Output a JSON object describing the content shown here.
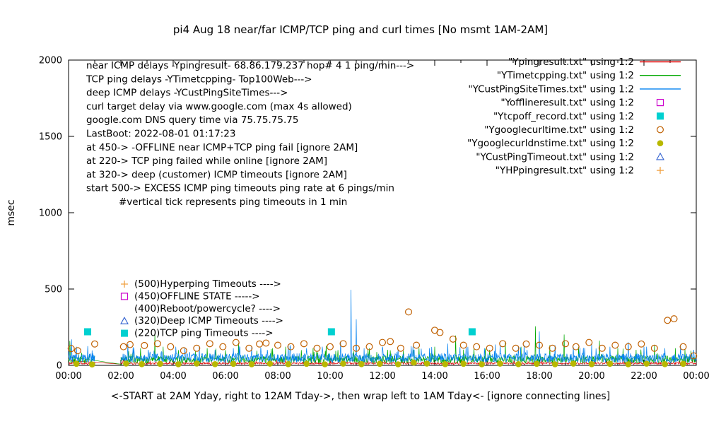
{
  "chart_data": {
    "type": "line",
    "title": "pi4 Aug 18  near/far ICMP/TCP ping and curl times [No msmt 1AM-2AM]",
    "ylabel": "msec",
    "footer_note": "<-START at 2AM Yday, right to 12AM Tday->, then wrap left to 1AM Tday<- [ignore connecting lines]",
    "xlim_hours": [
      0,
      24
    ],
    "ylim": [
      0,
      2000
    ],
    "y_ticks": [
      0,
      500,
      1000,
      1500,
      2000
    ],
    "x_tick_labels": [
      "00:00",
      "02:00",
      "04:00",
      "06:00",
      "08:00",
      "10:00",
      "12:00",
      "14:00",
      "16:00",
      "18:00",
      "20:00",
      "22:00",
      "00:00"
    ],
    "gap_hours": [
      1,
      2
    ],
    "grid": false,
    "legend_position": "top-right",
    "info_lines": [
      "near ICMP delays -Ypingresult- 68.86.179.237 hop# 4 1 ping/min--->",
      "TCP ping delays -YTimetcpping- Top100Web--->",
      "deep ICMP delays -YCustPingSiteTimes--->",
      "curl target delay via www.google.com (max 4s allowed)",
      "google.com DNS query time via 75.75.75.75",
      "LastBoot: 2022-08-01 01:17:23",
      "at 450-> -OFFLINE near ICMP+TCP ping fail [ignore 2AM]",
      "at 220-> TCP ping failed while online [ignore 2AM]",
      "at 320-> deep (customer) ICMP timeouts [ignore 2AM]",
      "start 500-> EXCESS ICMP ping timeouts ping rate at 6 pings/min",
      "#vertical tick represents ping timeouts in 1 min"
    ],
    "level_labels": [
      {
        "value": 500,
        "marker": "plus",
        "marker_color": "#f0a040",
        "label": "(500)Hyperping Timeouts ---->"
      },
      {
        "value": 450,
        "marker": "open-square",
        "marker_color": "#cc00cc",
        "label": "(450)OFFLINE STATE ----->"
      },
      {
        "value": 400,
        "marker": "none",
        "marker_color": "",
        "label": "(400)Reboot/powercycle? ---->"
      },
      {
        "value": 320,
        "marker": "open-triangle",
        "marker_color": "#3060d0",
        "label": "(320)Deep ICMP Timeouts ---->"
      },
      {
        "value": 220,
        "marker": "filled-square",
        "marker_color": "#00d0d0",
        "label": "(220)TCP ping Timeouts ---->"
      }
    ],
    "series": [
      {
        "legend": "\"Ypingresult.txt\" using 1:2",
        "style": "line",
        "color": "#dd0000",
        "baseline": [
          6,
          20
        ],
        "seed": 11,
        "spikes": [
          [
            0.15,
            58
          ],
          [
            2.1,
            42
          ],
          [
            4.5,
            36
          ],
          [
            6.9,
            32
          ],
          [
            9.0,
            34
          ],
          [
            12.1,
            36
          ],
          [
            15.0,
            32
          ],
          [
            18.1,
            40
          ],
          [
            21.5,
            34
          ],
          [
            23.5,
            30
          ]
        ],
        "connectors": [
          [
            0.1,
            30,
            2.0,
            8
          ]
        ]
      },
      {
        "legend": "\"YTimetcpping.txt\" using 1:2",
        "style": "line",
        "color": "#00a800",
        "baseline": [
          14,
          62
        ],
        "seed": 22,
        "spikes": [
          [
            0.05,
            160
          ],
          [
            0.5,
            82
          ],
          [
            2.3,
            92
          ],
          [
            2.75,
            112
          ],
          [
            3.3,
            205
          ],
          [
            3.62,
            122
          ],
          [
            4.2,
            100
          ],
          [
            4.85,
            92
          ],
          [
            5.3,
            112
          ],
          [
            6.0,
            100
          ],
          [
            6.5,
            148
          ],
          [
            7.2,
            96
          ],
          [
            7.8,
            112
          ],
          [
            8.3,
            122
          ],
          [
            8.9,
            100
          ],
          [
            9.35,
            112
          ],
          [
            9.85,
            128
          ],
          [
            10.3,
            100
          ],
          [
            10.9,
            92
          ],
          [
            11.5,
            112
          ],
          [
            12.2,
            102
          ],
          [
            12.8,
            96
          ],
          [
            13.4,
            112
          ],
          [
            14.0,
            122
          ],
          [
            14.8,
            196
          ],
          [
            15.5,
            112
          ],
          [
            16.1,
            102
          ],
          [
            16.7,
            156
          ],
          [
            17.3,
            122
          ],
          [
            17.85,
            256
          ],
          [
            18.4,
            132
          ],
          [
            18.95,
            202
          ],
          [
            19.5,
            122
          ],
          [
            20.3,
            162
          ],
          [
            21.0,
            112
          ],
          [
            21.7,
            102
          ],
          [
            22.4,
            132
          ],
          [
            23.2,
            112
          ],
          [
            23.8,
            96
          ]
        ],
        "connectors": [
          [
            0.08,
            55,
            2.05,
            6
          ]
        ]
      },
      {
        "legend": "\"YCustPingSiteTimes.txt\" using 1:2",
        "style": "line",
        "color": "#0080f0",
        "baseline": [
          18,
          78
        ],
        "seed": 33,
        "spikes": [
          [
            0.12,
            170
          ],
          [
            0.3,
            122
          ],
          [
            2.5,
            112
          ],
          [
            3.05,
            102
          ],
          [
            4.1,
            122
          ],
          [
            5.0,
            126
          ],
          [
            5.6,
            102
          ],
          [
            6.3,
            112
          ],
          [
            7.0,
            122
          ],
          [
            7.6,
            102
          ],
          [
            8.4,
            132
          ],
          [
            9.1,
            112
          ],
          [
            9.7,
            122
          ],
          [
            10.4,
            152
          ],
          [
            10.8,
            495
          ],
          [
            11.0,
            302
          ],
          [
            11.3,
            112
          ],
          [
            12.0,
            122
          ],
          [
            12.6,
            102
          ],
          [
            13.1,
            126
          ],
          [
            13.8,
            112
          ],
          [
            14.5,
            142
          ],
          [
            15.2,
            122
          ],
          [
            15.9,
            112
          ],
          [
            16.5,
            132
          ],
          [
            17.2,
            122
          ],
          [
            18.0,
            222
          ],
          [
            18.6,
            132
          ],
          [
            19.3,
            122
          ],
          [
            20.0,
            142
          ],
          [
            20.7,
            122
          ],
          [
            21.4,
            152
          ],
          [
            22.1,
            122
          ],
          [
            22.8,
            112
          ],
          [
            23.4,
            126
          ],
          [
            23.9,
            102
          ]
        ],
        "connectors": []
      },
      {
        "legend": "\"Yofflineresult.txt\" using 1:2",
        "style": "points",
        "marker": "open-square",
        "color": "#cc00cc",
        "points": []
      },
      {
        "legend": "\"Ytcpoff_record.txt\" using 1:2",
        "style": "points",
        "marker": "filled-square",
        "color": "#00d0d0",
        "points": [
          [
            0.73,
            220
          ],
          [
            10.05,
            220
          ],
          [
            15.43,
            220
          ]
        ]
      },
      {
        "legend": "\"Ygooglecurltime.txt\" using 1:2",
        "style": "points",
        "marker": "open-circle",
        "color": "#c06000",
        "points": [
          [
            0.1,
            110
          ],
          [
            0.35,
            96
          ],
          [
            1.0,
            140
          ],
          [
            2.1,
            122
          ],
          [
            2.35,
            136
          ],
          [
            2.9,
            130
          ],
          [
            3.4,
            142
          ],
          [
            3.9,
            122
          ],
          [
            4.4,
            96
          ],
          [
            4.9,
            112
          ],
          [
            5.4,
            142
          ],
          [
            5.9,
            122
          ],
          [
            6.4,
            150
          ],
          [
            6.9,
            112
          ],
          [
            7.3,
            140
          ],
          [
            7.55,
            146
          ],
          [
            8.0,
            132
          ],
          [
            8.5,
            122
          ],
          [
            9.0,
            142
          ],
          [
            9.5,
            112
          ],
          [
            10.0,
            122
          ],
          [
            10.5,
            142
          ],
          [
            11.0,
            112
          ],
          [
            11.5,
            122
          ],
          [
            12.0,
            150
          ],
          [
            12.3,
            156
          ],
          [
            12.7,
            112
          ],
          [
            13.0,
            350
          ],
          [
            13.3,
            132
          ],
          [
            14.0,
            230
          ],
          [
            14.2,
            215
          ],
          [
            14.7,
            172
          ],
          [
            15.1,
            132
          ],
          [
            15.6,
            122
          ],
          [
            16.1,
            112
          ],
          [
            16.6,
            142
          ],
          [
            17.1,
            112
          ],
          [
            17.5,
            140
          ],
          [
            18.0,
            132
          ],
          [
            18.5,
            112
          ],
          [
            19.0,
            142
          ],
          [
            19.4,
            122
          ],
          [
            19.9,
            150
          ],
          [
            20.4,
            112
          ],
          [
            20.9,
            132
          ],
          [
            21.4,
            122
          ],
          [
            21.9,
            140
          ],
          [
            22.4,
            112
          ],
          [
            22.9,
            295
          ],
          [
            23.15,
            305
          ],
          [
            23.5,
            122
          ],
          [
            23.9,
            62
          ]
        ]
      },
      {
        "legend": "\"Ygooglecurldnstime.txt\" using 1:2",
        "style": "points",
        "marker": "filled-circle",
        "color": "#b8b800",
        "points": [
          [
            0.3,
            10
          ],
          [
            0.9,
            6
          ],
          [
            2.2,
            12
          ],
          [
            2.8,
            8
          ],
          [
            3.5,
            10
          ],
          [
            4.2,
            7
          ],
          [
            4.9,
            12
          ],
          [
            5.6,
            8
          ],
          [
            6.3,
            10
          ],
          [
            7.0,
            7
          ],
          [
            7.7,
            11
          ],
          [
            8.4,
            8
          ],
          [
            9.1,
            10
          ],
          [
            9.8,
            7
          ],
          [
            10.5,
            11
          ],
          [
            11.2,
            8
          ],
          [
            11.9,
            10
          ],
          [
            12.6,
            7
          ],
          [
            13.2,
            18
          ],
          [
            13.7,
            12
          ],
          [
            14.4,
            8
          ],
          [
            15.1,
            10
          ],
          [
            15.8,
            7
          ],
          [
            16.5,
            11
          ],
          [
            17.2,
            8
          ],
          [
            17.9,
            10
          ],
          [
            18.6,
            7
          ],
          [
            19.3,
            11
          ],
          [
            20.0,
            8
          ],
          [
            20.7,
            10
          ],
          [
            21.4,
            7
          ],
          [
            22.1,
            11
          ],
          [
            22.8,
            8
          ],
          [
            23.5,
            10
          ]
        ]
      },
      {
        "legend": "\"YCustPingTimeout.txt\" using 1:2",
        "style": "points",
        "marker": "open-triangle",
        "color": "#3060d0",
        "points": []
      },
      {
        "legend": "\"YHPpingresult.txt\" using 1:2",
        "style": "points",
        "marker": "plus",
        "color": "#f0a040",
        "points": []
      }
    ]
  }
}
